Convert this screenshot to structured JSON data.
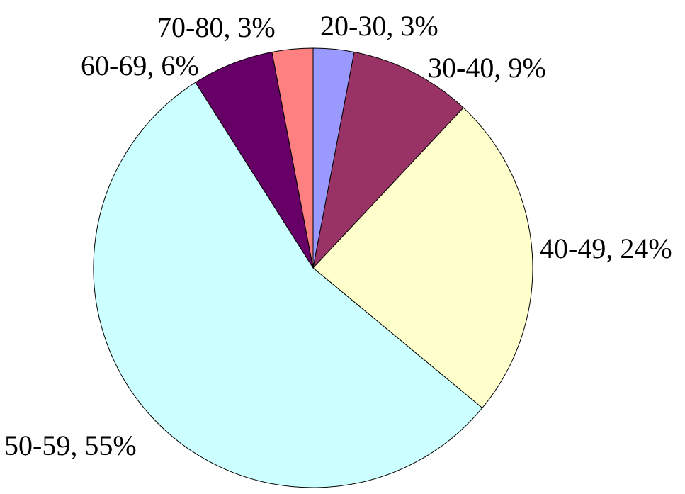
{
  "chart_data": {
    "type": "pie",
    "title": "",
    "slices": [
      {
        "label": "20-30, 3%",
        "category": "20-30",
        "value": 3,
        "color": "#9999FF"
      },
      {
        "label": "30-40, 9%",
        "category": "30-40",
        "value": 9,
        "color": "#993366"
      },
      {
        "label": "40-49, 24%",
        "category": "40-49",
        "value": 24,
        "color": "#FFFFCC"
      },
      {
        "label": "50-59, 55%",
        "category": "50-59",
        "value": 55,
        "color": "#CCFFFF"
      },
      {
        "label": "60-69, 6%",
        "category": "60-69",
        "value": 6,
        "color": "#660066"
      },
      {
        "label": "70-80, 3%",
        "category": "70-80",
        "value": 3,
        "color": "#FF8080"
      }
    ],
    "start_angle": "12 o'clock",
    "direction": "clockwise",
    "legend": "none",
    "data_labels": "outside"
  }
}
